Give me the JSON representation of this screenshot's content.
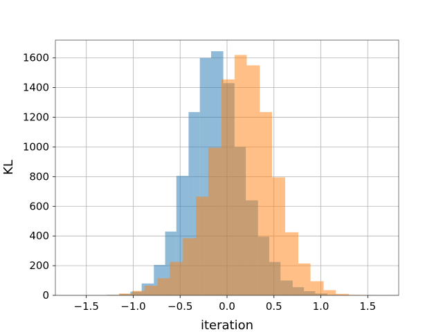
{
  "chart_data": {
    "type": "histogram",
    "title": "",
    "xlabel": "iteration",
    "ylabel": "KL",
    "xlim": [
      -1.83,
      1.83
    ],
    "ylim": [
      0,
      1720
    ],
    "x_ticks": [
      -1.5,
      -1.0,
      -0.5,
      0.0,
      0.5,
      1.0,
      1.5
    ],
    "x_tick_labels": [
      "−1.5",
      "−1.0",
      "−0.5",
      "0.0",
      "0.5",
      "1.0",
      "1.5"
    ],
    "y_ticks": [
      0,
      200,
      400,
      600,
      800,
      1000,
      1200,
      1400,
      1600
    ],
    "y_tick_labels": [
      "0",
      "200",
      "400",
      "600",
      "800",
      "1000",
      "1200",
      "1400",
      "1600"
    ],
    "grid": true,
    "legend": "none",
    "series": [
      {
        "color": "#1f77b4",
        "alpha": 0.5,
        "bin_edges": [
          -1.28,
          -1.15,
          -1.03,
          -0.91,
          -0.78,
          -0.66,
          -0.54,
          -0.41,
          -0.29,
          -0.17,
          -0.04,
          0.08,
          0.2,
          0.33,
          0.45,
          0.57,
          0.7,
          0.82,
          0.94,
          1.07,
          1.19,
          1.31
        ],
        "counts": [
          3,
          8,
          25,
          80,
          205,
          430,
          805,
          1235,
          1600,
          1645,
          1430,
          1000,
          640,
          395,
          225,
          100,
          55,
          28,
          12,
          3,
          1
        ]
      },
      {
        "color": "#ff7f0e",
        "alpha": 0.5,
        "bin_edges": [
          -1.28,
          -1.15,
          -1.01,
          -0.88,
          -0.74,
          -0.61,
          -0.47,
          -0.33,
          -0.2,
          -0.06,
          0.08,
          0.21,
          0.35,
          0.48,
          0.62,
          0.76,
          0.89,
          1.03,
          1.16,
          1.3,
          1.43,
          1.57,
          1.71,
          1.84
        ],
        "counts": [
          3,
          12,
          30,
          65,
          115,
          225,
          385,
          665,
          995,
          1455,
          1620,
          1550,
          1235,
          795,
          425,
          215,
          95,
          35,
          10,
          3,
          1,
          0,
          1
        ]
      }
    ]
  }
}
